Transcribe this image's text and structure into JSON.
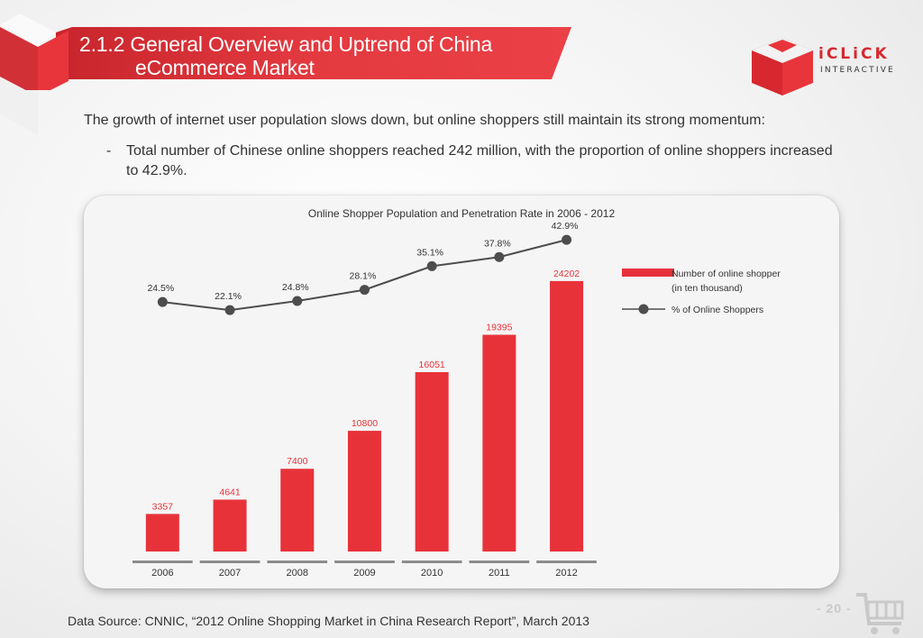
{
  "header": {
    "title_line1": "2.1.2  General Overview and Uptrend of China",
    "title_line2": "eCommerce Market",
    "logo_text": "iCLiCK",
    "logo_subtext": "INTERACTIVE"
  },
  "intro": "The growth of internet user population slows down, but online shoppers still maintain its strong momentum:",
  "bullet": {
    "dash": "-",
    "text": "Total number of Chinese online shoppers reached 242 million, with the proportion of online shoppers increased to 42.9%."
  },
  "footer": {
    "source": "Data Source: CNNIC, “2012 Online Shopping Market in China Research Report”, March 2013",
    "page_number": "- 20 -"
  },
  "colors": {
    "brand_red": "#e8323a",
    "line": "#4d4d4d"
  },
  "chart_data": {
    "type": "bar+line",
    "title": "Online Shopper Population and Penetration Rate in 2006 - 2012",
    "categories": [
      "2006",
      "2007",
      "2008",
      "2009",
      "2010",
      "2011",
      "2012"
    ],
    "series": [
      {
        "name": "Number of online shopper (in ten thousand)",
        "type": "bar",
        "values": [
          3357,
          4641,
          7400,
          10800,
          16051,
          19395,
          24202
        ],
        "labels": [
          "3357",
          "4641",
          "7400",
          "10800",
          "16051",
          "19395",
          "24202"
        ]
      },
      {
        "name": "% of Online Shoppers",
        "type": "line",
        "values": [
          24.5,
          22.1,
          24.8,
          28.1,
          35.1,
          37.8,
          42.9
        ],
        "labels": [
          "24.5%",
          "22.1%",
          "24.8%",
          "28.1%",
          "35.1%",
          "37.8%",
          "42.9%"
        ]
      }
    ],
    "legend": {
      "bar_label_line1": "Number of online shopper",
      "bar_label_line2": "(in ten thousand)",
      "line_label": "% of Online Shoppers",
      "position": "right"
    },
    "bar_ylim": [
      0,
      25000
    ],
    "line_ylim": [
      20,
      44
    ]
  }
}
